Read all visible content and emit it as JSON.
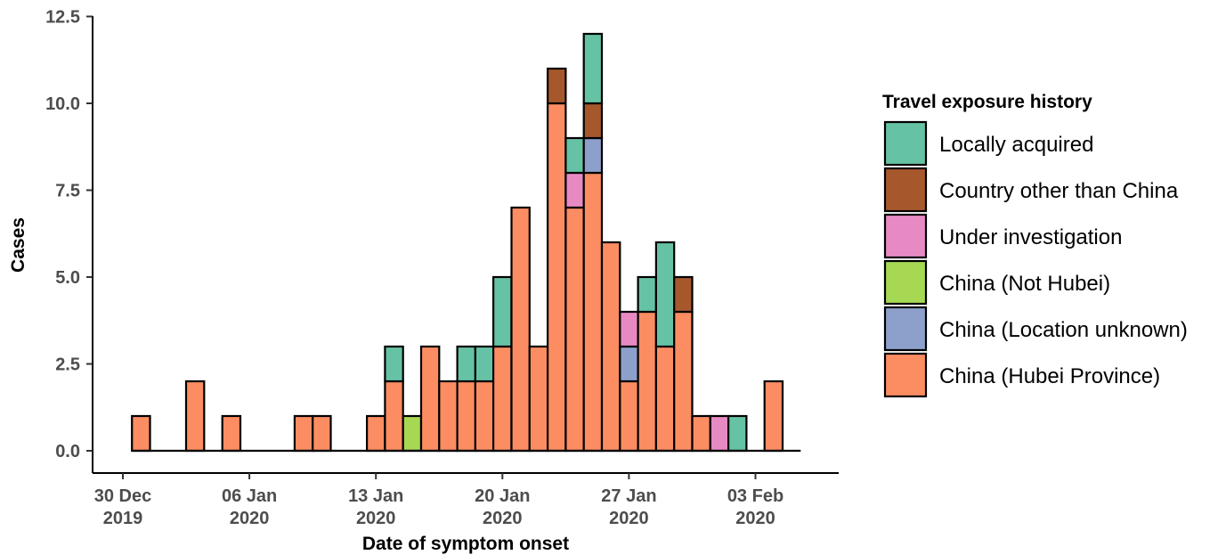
{
  "chart_data": {
    "type": "bar",
    "stacked": true,
    "xlabel": "Date of symptom onset",
    "ylabel": "Cases",
    "ylim": [
      0,
      12.5
    ],
    "yticks": [
      0.0,
      2.5,
      5.0,
      7.5,
      10.0,
      12.5
    ],
    "ytick_labels": [
      "0.0",
      "2.5",
      "5.0",
      "7.5",
      "10.0",
      "12.5"
    ],
    "x_start": "2019-12-30",
    "x_end": "2020-02-05",
    "xticks": [
      {
        "date": "2019-12-30",
        "line1": "30 Dec",
        "line2": "2019"
      },
      {
        "date": "2020-01-06",
        "line1": "06 Jan",
        "line2": "2020"
      },
      {
        "date": "2020-01-13",
        "line1": "13 Jan",
        "line2": "2020"
      },
      {
        "date": "2020-01-20",
        "line1": "20 Jan",
        "line2": "2020"
      },
      {
        "date": "2020-01-27",
        "line1": "27 Jan",
        "line2": "2020"
      },
      {
        "date": "2020-02-03",
        "line1": "03 Feb",
        "line2": "2020"
      }
    ],
    "legend_title": "Travel exposure history",
    "legend_position": "right",
    "grid": false,
    "series": [
      {
        "name": "China (Hubei Province)",
        "color": "#FC8D62"
      },
      {
        "name": "China (Location unknown)",
        "color": "#8DA0CB"
      },
      {
        "name": "China (Not Hubei)",
        "color": "#A6D854"
      },
      {
        "name": "Under investigation",
        "color": "#E78AC3"
      },
      {
        "name": "Country other than China",
        "color": "#A6582C"
      },
      {
        "name": "Locally acquired",
        "color": "#66C2A5"
      }
    ],
    "legend_order": [
      "Locally acquired",
      "Country other than China",
      "Under investigation",
      "China (Not Hubei)",
      "China (Location unknown)",
      "China (Hubei Province)"
    ],
    "days": [
      {
        "date": "2019-12-31",
        "China (Hubei Province)": 1
      },
      {
        "date": "2020-01-01"
      },
      {
        "date": "2020-01-02"
      },
      {
        "date": "2020-01-03",
        "China (Hubei Province)": 2
      },
      {
        "date": "2020-01-04"
      },
      {
        "date": "2020-01-05",
        "China (Hubei Province)": 1
      },
      {
        "date": "2020-01-06"
      },
      {
        "date": "2020-01-07"
      },
      {
        "date": "2020-01-08"
      },
      {
        "date": "2020-01-09",
        "China (Hubei Province)": 1
      },
      {
        "date": "2020-01-10",
        "China (Hubei Province)": 1
      },
      {
        "date": "2020-01-11"
      },
      {
        "date": "2020-01-12"
      },
      {
        "date": "2020-01-13",
        "China (Hubei Province)": 1
      },
      {
        "date": "2020-01-14",
        "China (Hubei Province)": 2,
        "Locally acquired": 1
      },
      {
        "date": "2020-01-15",
        "China (Not Hubei)": 1
      },
      {
        "date": "2020-01-16",
        "China (Hubei Province)": 3
      },
      {
        "date": "2020-01-17",
        "China (Hubei Province)": 2
      },
      {
        "date": "2020-01-18",
        "China (Hubei Province)": 2,
        "Locally acquired": 1
      },
      {
        "date": "2020-01-19",
        "China (Hubei Province)": 2,
        "Locally acquired": 1
      },
      {
        "date": "2020-01-20",
        "China (Hubei Province)": 3,
        "Locally acquired": 2
      },
      {
        "date": "2020-01-21",
        "China (Hubei Province)": 7
      },
      {
        "date": "2020-01-22",
        "China (Hubei Province)": 3
      },
      {
        "date": "2020-01-23",
        "China (Hubei Province)": 10,
        "Country other than China": 1
      },
      {
        "date": "2020-01-24",
        "China (Hubei Province)": 7,
        "Under investigation": 1,
        "Locally acquired": 1
      },
      {
        "date": "2020-01-25",
        "China (Hubei Province)": 8,
        "China (Location unknown)": 1,
        "Country other than China": 1,
        "Locally acquired": 2
      },
      {
        "date": "2020-01-26",
        "China (Hubei Province)": 6
      },
      {
        "date": "2020-01-27",
        "China (Hubei Province)": 2,
        "China (Location unknown)": 1,
        "Under investigation": 1
      },
      {
        "date": "2020-01-28",
        "China (Hubei Province)": 4,
        "Locally acquired": 1
      },
      {
        "date": "2020-01-29",
        "China (Hubei Province)": 3,
        "Locally acquired": 3
      },
      {
        "date": "2020-01-30",
        "China (Hubei Province)": 4,
        "Country other than China": 1
      },
      {
        "date": "2020-01-31",
        "China (Hubei Province)": 1
      },
      {
        "date": "2020-02-01",
        "Under investigation": 1
      },
      {
        "date": "2020-02-02",
        "Locally acquired": 1
      },
      {
        "date": "2020-02-03"
      },
      {
        "date": "2020-02-04",
        "China (Hubei Province)": 2
      }
    ]
  }
}
